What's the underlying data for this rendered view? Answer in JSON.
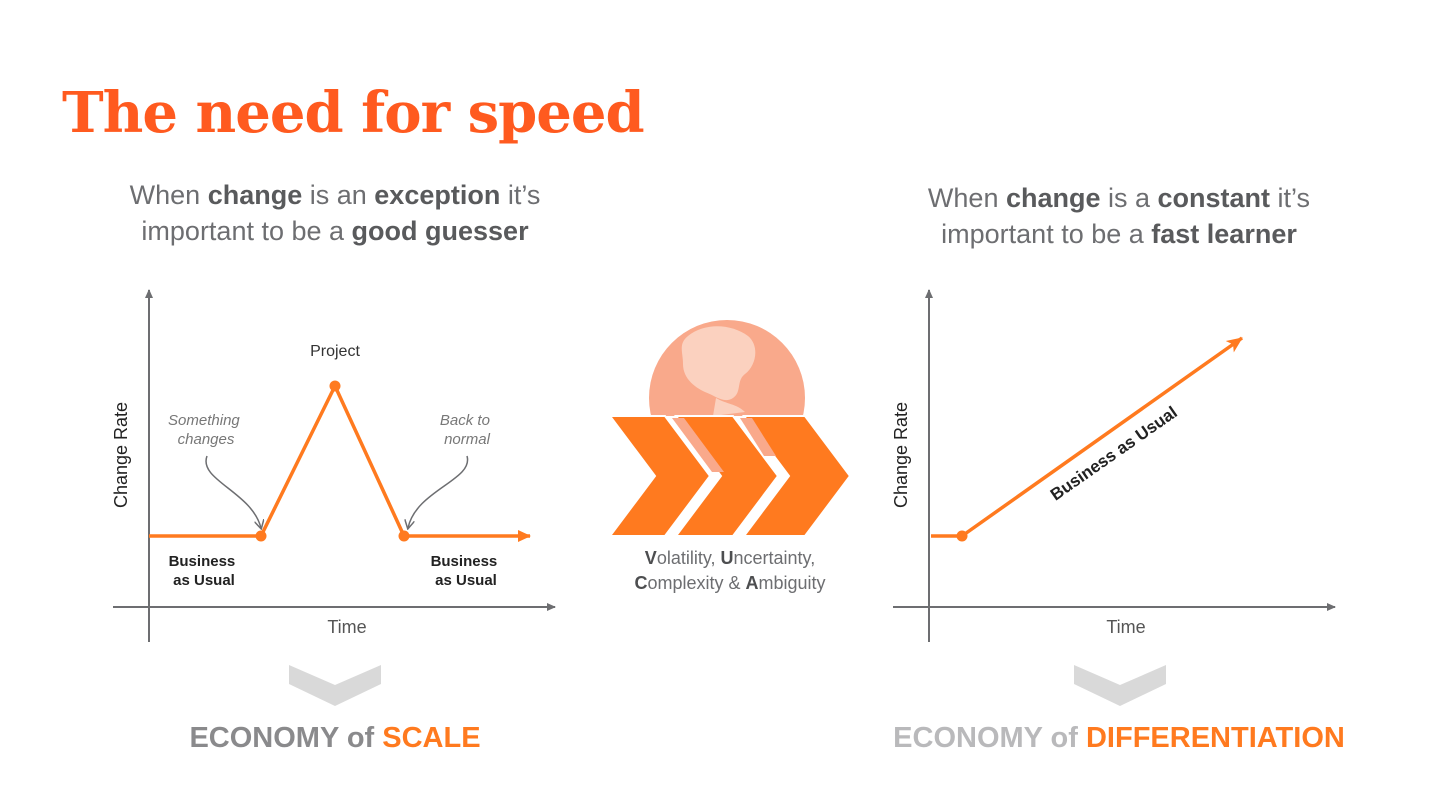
{
  "title": "The need for speed",
  "left": {
    "subtitle": {
      "p1": "When ",
      "b1": "change",
      "p2": " is an ",
      "b2": "exception",
      "p3": " it’s",
      "p4": "important to be a ",
      "b3": "good guesser"
    },
    "y_axis_label": "Change Rate",
    "x_axis_label": "Time",
    "annotations": {
      "something_changes": [
        "Something",
        "changes"
      ],
      "back_to_normal": [
        "Back to",
        "normal"
      ],
      "project": "Project",
      "bau_left": [
        "Business",
        "as Usual"
      ],
      "bau_right": [
        "Business",
        "as Usual"
      ]
    },
    "footer": {
      "a": "ECONOMY",
      "b": " of ",
      "c": "SCALE"
    }
  },
  "center": {
    "vuca": {
      "v": "V",
      "v_rest": "olatility, ",
      "u": "U",
      "u_rest": "ncertainty,",
      "c": "C",
      "c_rest": "omplexity & ",
      "a": "A",
      "a_rest": "mbiguity"
    }
  },
  "right": {
    "subtitle": {
      "p1": "When ",
      "b1": "change",
      "p2": " is a ",
      "b2": "constant",
      "p3": " it’s",
      "p4": "important to be a ",
      "b3": "fast learner"
    },
    "y_axis_label": "Change Rate",
    "x_axis_label": "Time",
    "line_label": "Business as Usual",
    "footer": {
      "a": "ECONOMY",
      "b": " of ",
      "c": "DIFFERENTIATION"
    }
  },
  "colors": {
    "title": "#ff5a1f",
    "accent": "#ff7a1f",
    "axis": "#6d6e71",
    "globe": "#f9a98b",
    "globe_land": "#fbd1bf",
    "chevron_light": "#d9d9d9"
  }
}
